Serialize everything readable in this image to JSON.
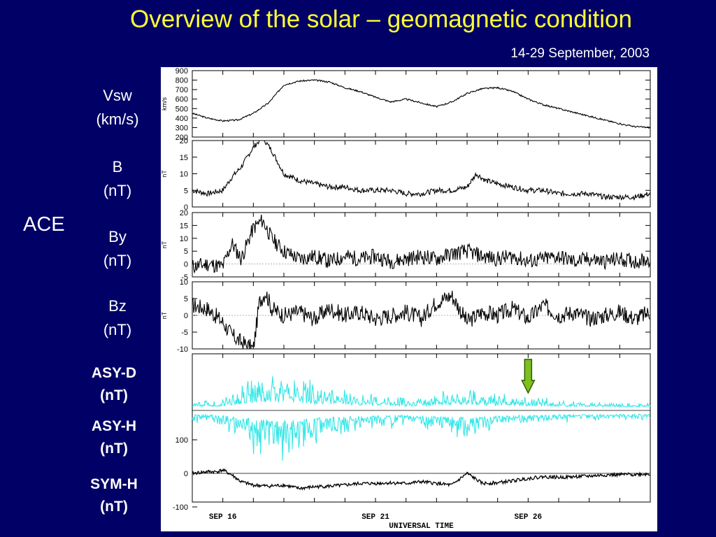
{
  "title": "Overview of the solar – geomagnetic condition",
  "subtitle": "14-29 September, 2003",
  "ace_label": "ACE",
  "panel_labels": [
    {
      "name": "Vsw",
      "unit": "(km/s)"
    },
    {
      "name": "B",
      "unit": "(nT)"
    },
    {
      "name": "By",
      "unit": "(nT)"
    },
    {
      "name": "Bz",
      "unit": "(nT)"
    },
    {
      "name": "ASY-D",
      "unit": "(nT)"
    },
    {
      "name": "ASY-H",
      "unit": "(nT)"
    },
    {
      "name": "SYM-H",
      "unit": "(nT)"
    }
  ],
  "colors": {
    "background": "#000066",
    "title": "#ffff33",
    "asy_trace": "#33e6e6",
    "arrow_fill": "#7fbf1f",
    "arrow_stroke": "#2f5f00"
  },
  "chart_data": [
    {
      "type": "line",
      "panel": "Vsw",
      "ylabel": "km/s",
      "ylim": [
        200,
        900
      ],
      "yticks": [
        200,
        300,
        400,
        500,
        600,
        700,
        800,
        900
      ],
      "xlim": [
        15,
        30
      ],
      "x": [
        15,
        15.5,
        16,
        16.5,
        17,
        17.5,
        18,
        18.5,
        19,
        19.5,
        20,
        20.5,
        21,
        21.5,
        22,
        22.5,
        23,
        23.5,
        24,
        24.5,
        25,
        25.5,
        26,
        26.5,
        27,
        27.5,
        28,
        28.5,
        29,
        29.5,
        30
      ],
      "values": [
        450,
        400,
        370,
        380,
        450,
        560,
        750,
        790,
        800,
        780,
        720,
        680,
        620,
        570,
        600,
        560,
        520,
        570,
        660,
        710,
        720,
        680,
        600,
        540,
        500,
        460,
        420,
        380,
        340,
        310,
        300
      ]
    },
    {
      "type": "line",
      "panel": "B",
      "ylabel": "nT",
      "ylim": [
        0,
        20
      ],
      "yticks": [
        0,
        5,
        10,
        15,
        20
      ],
      "xlim": [
        15,
        30
      ],
      "x": [
        15,
        15.5,
        16,
        16.3,
        16.6,
        17,
        17.3,
        17.6,
        18,
        18.5,
        19,
        19.5,
        20,
        20.5,
        21,
        21.5,
        22,
        22.5,
        23,
        23.5,
        24,
        24.3,
        24.6,
        25,
        25.5,
        26,
        26.5,
        27,
        27.5,
        28,
        28.5,
        29,
        29.5,
        30
      ],
      "values": [
        5,
        4,
        5,
        9,
        12,
        18,
        21,
        17,
        10,
        8,
        7,
        6,
        6,
        5,
        5,
        5,
        4,
        4,
        5,
        5,
        6,
        10,
        8,
        7,
        6,
        5,
        5,
        4,
        4,
        4,
        3,
        3,
        3,
        4
      ]
    },
    {
      "type": "line",
      "panel": "By",
      "ylabel": "nT",
      "ylim": [
        -5,
        20
      ],
      "yticks": [
        -5,
        0,
        5,
        10,
        15,
        20
      ],
      "xlim": [
        15,
        30
      ],
      "x": [
        15,
        15.5,
        16,
        16.3,
        16.6,
        17,
        17.3,
        17.6,
        18,
        18.5,
        19,
        19.5,
        20,
        20.5,
        21,
        21.5,
        22,
        22.5,
        23,
        23.5,
        24,
        24.5,
        25,
        25.5,
        26,
        26.5,
        27,
        27.5,
        28,
        28.5,
        29,
        29.5,
        30
      ],
      "values": [
        -1,
        0,
        -1,
        8,
        2,
        14,
        17,
        10,
        5,
        2,
        3,
        1,
        3,
        2,
        3,
        1,
        2,
        3,
        2,
        4,
        5,
        3,
        2,
        3,
        1,
        2,
        3,
        1,
        2,
        1,
        2,
        1,
        2
      ]
    },
    {
      "type": "line",
      "panel": "Bz",
      "ylabel": "nT",
      "ylim": [
        -10,
        10
      ],
      "yticks": [
        -10,
        -5,
        0,
        5,
        10
      ],
      "xlim": [
        15,
        30
      ],
      "x": [
        15,
        15.5,
        16,
        16.3,
        16.6,
        17,
        17.2,
        17.4,
        17.6,
        18,
        18.5,
        19,
        19.5,
        20,
        20.5,
        21,
        21.5,
        22,
        22.5,
        23,
        23.5,
        24,
        24.5,
        25,
        25.5,
        26,
        26.5,
        27,
        27.5,
        28,
        28.5,
        29,
        29.5,
        30
      ],
      "values": [
        3,
        2,
        -2,
        -6,
        -8,
        -10,
        4,
        7,
        2,
        0,
        1,
        -1,
        2,
        0,
        1,
        -1,
        0,
        1,
        -1,
        4,
        6,
        -2,
        1,
        0,
        2,
        -1,
        3,
        0,
        1,
        -1,
        0,
        1,
        -1,
        1
      ]
    },
    {
      "type": "line",
      "panel": "ASY-D / ASY-H / SYM-H",
      "ylim": [
        -100,
        100
      ],
      "yticks": [
        -100,
        0,
        100
      ],
      "xlim": [
        15,
        30
      ],
      "xticks": [
        "SEP 16",
        "SEP 21",
        "SEP 26"
      ],
      "xtick_positions": [
        16,
        21,
        26
      ],
      "xlabel": "UNIVERSAL TIME",
      "series": [
        {
          "name": "SYM-H",
          "x": [
            15,
            15.5,
            15.8,
            16,
            16.3,
            16.6,
            17,
            17.5,
            18,
            18.5,
            19,
            19.5,
            20,
            20.5,
            21,
            21.5,
            22,
            22.5,
            23,
            23.5,
            24,
            24.5,
            25,
            25.5,
            26,
            26.5,
            27,
            27.5,
            28,
            28.5,
            29,
            29.5,
            30
          ],
          "values": [
            0,
            5,
            5,
            10,
            -5,
            -25,
            -35,
            -38,
            -35,
            -45,
            -40,
            -38,
            -35,
            -30,
            -30,
            -28,
            -30,
            -25,
            -30,
            -35,
            0,
            -30,
            -28,
            -22,
            -15,
            -10,
            -12,
            -10,
            -8,
            -5,
            -4,
            -3,
            -2
          ]
        },
        {
          "name": "ASY-D",
          "x": [
            15,
            16,
            17,
            18,
            19,
            20,
            21,
            22,
            23,
            24,
            25,
            26,
            27,
            28,
            29,
            30
          ],
          "values": [
            10,
            15,
            50,
            60,
            40,
            30,
            20,
            15,
            25,
            35,
            20,
            18,
            12,
            10,
            8,
            8
          ]
        },
        {
          "name": "ASY-H",
          "x": [
            15,
            16,
            17,
            18,
            19,
            20,
            21,
            22,
            23,
            24,
            25,
            26,
            27,
            28,
            29,
            30
          ],
          "values": [
            15,
            20,
            60,
            80,
            50,
            35,
            25,
            20,
            30,
            45,
            25,
            20,
            15,
            12,
            10,
            10
          ]
        }
      ]
    }
  ]
}
